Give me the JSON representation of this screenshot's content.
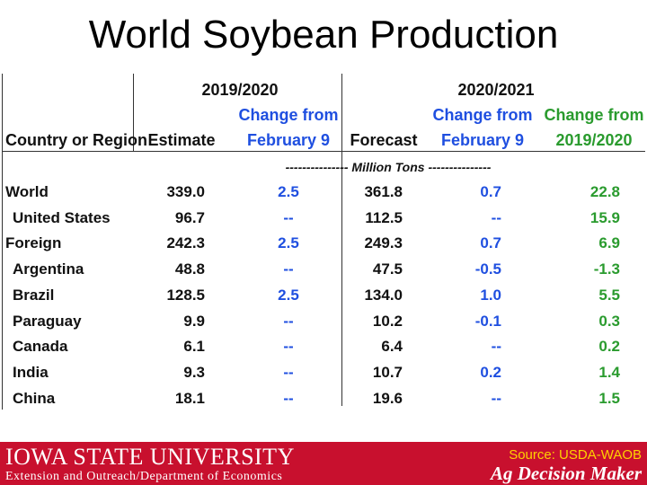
{
  "title": "World Soybean Production",
  "table": {
    "group_2019": "2019/2020",
    "group_2020": "2020/2021",
    "header_country": "Country or Region",
    "header_estimate": "Estimate",
    "header_change_feb_2019_l1": "Change from",
    "header_change_feb_2019_l2": "February 9",
    "header_forecast": "Forecast",
    "header_change_feb_2020_l1": "Change from",
    "header_change_feb_2020_l2": "February 9",
    "header_change_prior_l1": "Change from",
    "header_change_prior_l2": "2019/2020",
    "units": "--------------- Million Tons ---------------",
    "rows": [
      {
        "name": "World",
        "estimate": "339.0",
        "chg_feb_2019": "2.5",
        "forecast": "361.8",
        "chg_feb_2020": "0.7",
        "chg_prior": "22.8"
      },
      {
        "name": "United States",
        "estimate": "96.7",
        "chg_feb_2019": "--",
        "forecast": "112.5",
        "chg_feb_2020": "--",
        "chg_prior": "15.9"
      },
      {
        "name": "Foreign",
        "estimate": "242.3",
        "chg_feb_2019": "2.5",
        "forecast": "249.3",
        "chg_feb_2020": "0.7",
        "chg_prior": "6.9"
      },
      {
        "name": "Argentina",
        "estimate": "48.8",
        "chg_feb_2019": "--",
        "forecast": "47.5",
        "chg_feb_2020": "-0.5",
        "chg_prior": "-1.3"
      },
      {
        "name": "Brazil",
        "estimate": "128.5",
        "chg_feb_2019": "2.5",
        "forecast": "134.0",
        "chg_feb_2020": "1.0",
        "chg_prior": "5.5"
      },
      {
        "name": "Paraguay",
        "estimate": "9.9",
        "chg_feb_2019": "--",
        "forecast": "10.2",
        "chg_feb_2020": "-0.1",
        "chg_prior": "0.3"
      },
      {
        "name": "Canada",
        "estimate": "6.1",
        "chg_feb_2019": "--",
        "forecast": "6.4",
        "chg_feb_2020": "--",
        "chg_prior": "0.2"
      },
      {
        "name": "India",
        "estimate": "9.3",
        "chg_feb_2019": "--",
        "forecast": "10.7",
        "chg_feb_2020": "0.2",
        "chg_prior": "1.4"
      },
      {
        "name": "China",
        "estimate": "18.1",
        "chg_feb_2019": "--",
        "forecast": "19.6",
        "chg_feb_2020": "--",
        "chg_prior": "1.5"
      }
    ]
  },
  "footer": {
    "university": "IOWA STATE UNIVERSITY",
    "department": "Extension and Outreach/Department of Economics",
    "source": "Source: USDA-WAOB",
    "brand": "Ag Decision Maker"
  },
  "colors": {
    "footer_bg": "#c8102e",
    "change_blue": "#1f4fe0",
    "change_green": "#2a9b2e",
    "source_yellow": "#ffd200"
  }
}
